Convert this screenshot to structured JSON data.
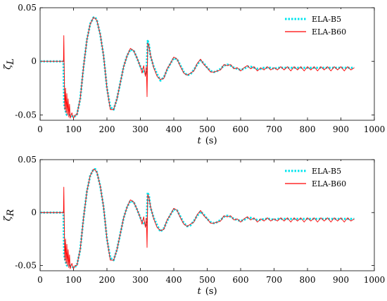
{
  "chart_data": [
    {
      "type": "line",
      "xlabel": "t",
      "xlabel_unit": "(s)",
      "ylabel": "ζ",
      "ylabel_sub": "L",
      "xlim": [
        0,
        1000
      ],
      "ylim": [
        -0.055,
        0.05
      ],
      "xticks": [
        "0",
        "100",
        "200",
        "300",
        "400",
        "500",
        "600",
        "700",
        "800",
        "900",
        "1000"
      ],
      "yticks": [
        "-0.05",
        "0",
        "0.05"
      ],
      "legend_position": "top-right",
      "series": [
        {
          "name": "ELA-B5",
          "color": "#00e5ee",
          "style": "dotted",
          "x": [
            0,
            70,
            72,
            75,
            80,
            90,
            100,
            110,
            120,
            130,
            140,
            150,
            160,
            165,
            170,
            180,
            190,
            200,
            210,
            220,
            230,
            240,
            250,
            260,
            270,
            280,
            290,
            300,
            310,
            318,
            322,
            326,
            330,
            340,
            350,
            360,
            370,
            380,
            390,
            400,
            410,
            420,
            430,
            440,
            450,
            460,
            470,
            480,
            490,
            500,
            510,
            520,
            530,
            540,
            550,
            560,
            570,
            580,
            590,
            600,
            610,
            620,
            630,
            640,
            650,
            660,
            670,
            680,
            690,
            700,
            710,
            720,
            730,
            740,
            750,
            760,
            770,
            780,
            790,
            800,
            810,
            820,
            830,
            840,
            850,
            860,
            870,
            880,
            890,
            900,
            910,
            920,
            930,
            940
          ],
          "y": [
            0,
            0,
            -0.04,
            -0.045,
            -0.05,
            -0.05,
            -0.052,
            -0.05,
            -0.035,
            -0.005,
            0.02,
            0.035,
            0.041,
            0.041,
            0.038,
            0.025,
            0.005,
            -0.025,
            -0.043,
            -0.045,
            -0.035,
            -0.02,
            -0.005,
            0.005,
            0.011,
            0.01,
            0.003,
            -0.005,
            -0.01,
            -0.012,
            0.019,
            0.015,
            0.005,
            -0.005,
            -0.012,
            -0.018,
            -0.015,
            -0.008,
            -0.002,
            0.003,
            0.002,
            -0.004,
            -0.01,
            -0.013,
            -0.012,
            -0.008,
            -0.003,
            0.001,
            -0.002,
            -0.006,
            -0.009,
            -0.01,
            -0.009,
            -0.007,
            -0.004,
            -0.003,
            -0.004,
            -0.006,
            -0.007,
            -0.008,
            -0.007,
            -0.005,
            -0.005,
            -0.006,
            -0.007,
            -0.007,
            -0.006,
            -0.006,
            -0.006,
            -0.007,
            -0.006,
            -0.006,
            -0.006,
            -0.006,
            -0.006,
            -0.006,
            -0.006,
            -0.006,
            -0.006,
            -0.006,
            -0.006,
            -0.006,
            -0.006,
            -0.006,
            -0.006,
            -0.006,
            -0.006,
            -0.006,
            -0.006,
            -0.006,
            -0.006,
            -0.006,
            -0.006,
            -0.006
          ]
        },
        {
          "name": "ELA-B60",
          "color": "#ff0000",
          "style": "solid",
          "x": [
            0,
            70,
            71,
            72,
            74,
            76,
            78,
            80,
            82,
            84,
            86,
            88,
            90,
            95,
            100,
            105,
            110,
            120,
            130,
            140,
            150,
            160,
            165,
            170,
            180,
            190,
            200,
            210,
            220,
            230,
            240,
            250,
            260,
            270,
            280,
            290,
            300,
            305,
            310,
            315,
            318,
            320,
            322,
            326,
            330,
            340,
            350,
            360,
            370,
            380,
            390,
            400,
            410,
            420,
            430,
            440,
            450,
            460,
            470,
            480,
            490,
            500,
            510,
            520,
            530,
            540,
            550,
            560,
            570,
            580,
            590,
            600,
            610,
            620,
            630,
            640,
            650,
            660,
            670,
            680,
            690,
            700,
            710,
            720,
            730,
            740,
            750,
            760,
            770,
            780,
            790,
            800,
            810,
            820,
            830,
            840,
            850,
            860,
            870,
            880,
            890,
            900,
            910,
            920,
            930,
            940
          ],
          "y": [
            0,
            0,
            0.024,
            -0.005,
            -0.045,
            -0.025,
            -0.048,
            -0.03,
            -0.05,
            -0.035,
            -0.052,
            -0.04,
            -0.053,
            -0.048,
            -0.053,
            -0.05,
            -0.05,
            -0.035,
            -0.005,
            0.02,
            0.035,
            0.041,
            0.04,
            0.038,
            0.025,
            0.005,
            -0.025,
            -0.045,
            -0.045,
            -0.035,
            -0.02,
            -0.005,
            0.005,
            0.012,
            0.01,
            0.003,
            -0.005,
            -0.011,
            -0.004,
            -0.014,
            -0.005,
            -0.033,
            0.017,
            0.014,
            0.006,
            -0.006,
            -0.014,
            -0.017,
            -0.016,
            -0.007,
            -0.002,
            0.004,
            0.002,
            -0.005,
            -0.011,
            -0.013,
            -0.011,
            -0.009,
            -0.002,
            0.002,
            -0.003,
            -0.006,
            -0.01,
            -0.01,
            -0.009,
            -0.008,
            -0.003,
            -0.004,
            -0.003,
            -0.007,
            -0.006,
            -0.009,
            -0.006,
            -0.004,
            -0.007,
            -0.005,
            -0.009,
            -0.006,
            -0.008,
            -0.005,
            -0.008,
            -0.006,
            -0.008,
            -0.005,
            -0.008,
            -0.005,
            -0.009,
            -0.005,
            -0.008,
            -0.005,
            -0.009,
            -0.005,
            -0.008,
            -0.005,
            -0.009,
            -0.005,
            -0.008,
            -0.005,
            -0.009,
            -0.005,
            -0.008,
            -0.005,
            -0.009,
            -0.005,
            -0.008,
            -0.006
          ]
        }
      ]
    },
    {
      "type": "line",
      "xlabel": "t",
      "xlabel_unit": "(s)",
      "ylabel": "ζ",
      "ylabel_sub": "R",
      "xlim": [
        0,
        1000
      ],
      "ylim": [
        -0.055,
        0.05
      ],
      "xticks": [
        "0",
        "100",
        "200",
        "300",
        "400",
        "500",
        "600",
        "700",
        "800",
        "900",
        "1000"
      ],
      "yticks": [
        "-0.05",
        "0",
        "0.05"
      ],
      "legend_position": "top-right",
      "series": [
        {
          "name": "ELA-B5",
          "color": "#00e5ee",
          "style": "dotted",
          "x": [
            0,
            70,
            72,
            75,
            80,
            90,
            100,
            110,
            120,
            130,
            140,
            150,
            160,
            165,
            170,
            180,
            190,
            200,
            210,
            220,
            230,
            240,
            250,
            260,
            270,
            280,
            290,
            300,
            310,
            318,
            322,
            326,
            330,
            340,
            350,
            360,
            370,
            380,
            390,
            400,
            410,
            420,
            430,
            440,
            450,
            460,
            470,
            480,
            490,
            500,
            510,
            520,
            530,
            540,
            550,
            560,
            570,
            580,
            590,
            600,
            610,
            620,
            630,
            640,
            650,
            660,
            670,
            680,
            690,
            700,
            710,
            720,
            730,
            740,
            750,
            760,
            770,
            780,
            790,
            800,
            810,
            820,
            830,
            840,
            850,
            860,
            870,
            880,
            890,
            900,
            910,
            920,
            930,
            940
          ],
          "y": [
            0,
            0,
            -0.04,
            -0.045,
            -0.05,
            -0.05,
            -0.052,
            -0.05,
            -0.035,
            -0.005,
            0.02,
            0.035,
            0.041,
            0.041,
            0.038,
            0.025,
            0.005,
            -0.025,
            -0.043,
            -0.045,
            -0.035,
            -0.02,
            -0.005,
            0.005,
            0.011,
            0.01,
            0.003,
            -0.005,
            -0.01,
            -0.012,
            0.019,
            0.015,
            0.005,
            -0.005,
            -0.012,
            -0.018,
            -0.015,
            -0.008,
            -0.002,
            0.003,
            0.002,
            -0.004,
            -0.01,
            -0.013,
            -0.012,
            -0.008,
            -0.003,
            0.001,
            -0.002,
            -0.006,
            -0.009,
            -0.01,
            -0.009,
            -0.007,
            -0.004,
            -0.003,
            -0.004,
            -0.006,
            -0.007,
            -0.008,
            -0.007,
            -0.005,
            -0.005,
            -0.006,
            -0.007,
            -0.007,
            -0.006,
            -0.006,
            -0.006,
            -0.007,
            -0.006,
            -0.006,
            -0.006,
            -0.006,
            -0.006,
            -0.006,
            -0.006,
            -0.006,
            -0.006,
            -0.006,
            -0.006,
            -0.006,
            -0.006,
            -0.006,
            -0.006,
            -0.006,
            -0.006,
            -0.006,
            -0.006,
            -0.006,
            -0.006,
            -0.006,
            -0.006,
            -0.006
          ]
        },
        {
          "name": "ELA-B60",
          "color": "#ff0000",
          "style": "solid",
          "x": [
            0,
            70,
            71,
            72,
            74,
            76,
            78,
            80,
            82,
            84,
            86,
            88,
            90,
            95,
            100,
            105,
            110,
            120,
            130,
            140,
            150,
            160,
            165,
            170,
            180,
            190,
            200,
            210,
            220,
            230,
            240,
            250,
            260,
            270,
            280,
            290,
            300,
            305,
            310,
            315,
            318,
            320,
            322,
            326,
            330,
            340,
            350,
            360,
            370,
            380,
            390,
            400,
            410,
            420,
            430,
            440,
            450,
            460,
            470,
            480,
            490,
            500,
            510,
            520,
            530,
            540,
            550,
            560,
            570,
            580,
            590,
            600,
            610,
            620,
            630,
            640,
            650,
            660,
            670,
            680,
            690,
            700,
            710,
            720,
            730,
            740,
            750,
            760,
            770,
            780,
            790,
            800,
            810,
            820,
            830,
            840,
            850,
            860,
            870,
            880,
            890,
            900,
            910,
            920,
            930,
            940
          ],
          "y": [
            0,
            0,
            0.024,
            -0.005,
            -0.045,
            -0.025,
            -0.048,
            -0.03,
            -0.05,
            -0.035,
            -0.052,
            -0.04,
            -0.053,
            -0.048,
            -0.053,
            -0.05,
            -0.05,
            -0.035,
            -0.005,
            0.02,
            0.035,
            0.041,
            0.04,
            0.038,
            0.025,
            0.005,
            -0.025,
            -0.045,
            -0.045,
            -0.035,
            -0.02,
            -0.005,
            0.005,
            0.012,
            0.01,
            0.003,
            -0.005,
            -0.011,
            -0.004,
            -0.014,
            -0.005,
            -0.033,
            0.017,
            0.014,
            0.006,
            -0.006,
            -0.014,
            -0.017,
            -0.016,
            -0.007,
            -0.002,
            0.004,
            0.002,
            -0.005,
            -0.011,
            -0.013,
            -0.011,
            -0.009,
            -0.002,
            0.002,
            -0.003,
            -0.006,
            -0.01,
            -0.01,
            -0.009,
            -0.008,
            -0.003,
            -0.004,
            -0.003,
            -0.007,
            -0.006,
            -0.009,
            -0.006,
            -0.004,
            -0.007,
            -0.005,
            -0.009,
            -0.006,
            -0.008,
            -0.005,
            -0.008,
            -0.006,
            -0.008,
            -0.005,
            -0.008,
            -0.005,
            -0.009,
            -0.005,
            -0.008,
            -0.005,
            -0.009,
            -0.005,
            -0.008,
            -0.005,
            -0.009,
            -0.005,
            -0.008,
            -0.005,
            -0.009,
            -0.005,
            -0.008,
            -0.005,
            -0.009,
            -0.005,
            -0.008,
            -0.006
          ]
        }
      ]
    }
  ]
}
